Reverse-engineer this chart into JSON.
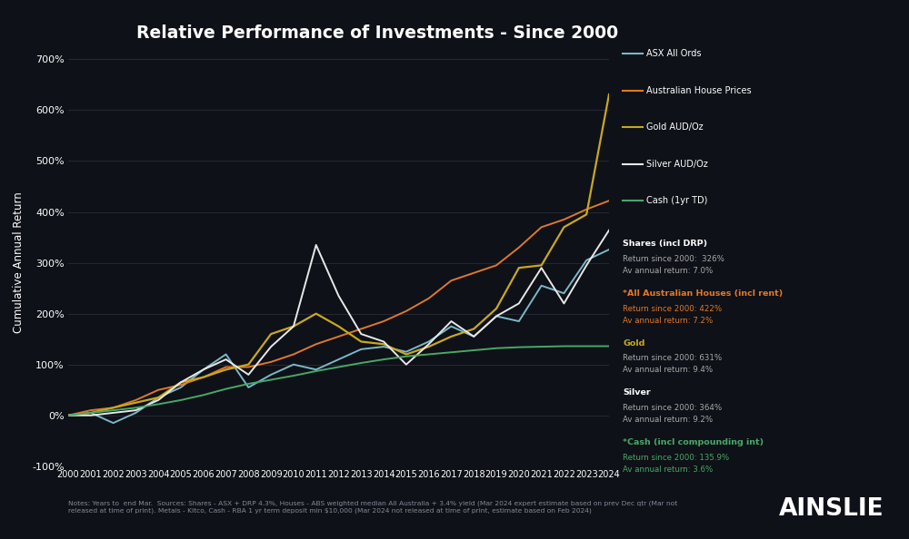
{
  "title": "Relative Performance of Investments - Since 2000",
  "ylabel": "Cumulative Annual Return",
  "background_color": "#0e1117",
  "plot_bg_color": "#0e1117",
  "grid_color": "#2a2d3a",
  "text_color": "#ffffff",
  "dim_text_color": "#888899",
  "years": [
    2000,
    2001,
    2002,
    2003,
    2004,
    2005,
    2006,
    2007,
    2008,
    2009,
    2010,
    2011,
    2012,
    2013,
    2014,
    2015,
    2016,
    2017,
    2018,
    2019,
    2020,
    2021,
    2022,
    2023,
    2024
  ],
  "asx": [
    0,
    5,
    -15,
    5,
    35,
    55,
    90,
    120,
    55,
    80,
    100,
    90,
    110,
    130,
    135,
    125,
    145,
    175,
    155,
    195,
    185,
    255,
    240,
    305,
    326
  ],
  "houses": [
    0,
    10,
    15,
    30,
    50,
    60,
    75,
    95,
    95,
    105,
    120,
    140,
    155,
    170,
    185,
    205,
    230,
    265,
    280,
    295,
    330,
    370,
    385,
    405,
    422
  ],
  "gold": [
    0,
    5,
    15,
    25,
    35,
    65,
    75,
    90,
    100,
    160,
    175,
    200,
    175,
    145,
    140,
    120,
    135,
    155,
    170,
    210,
    290,
    295,
    370,
    395,
    631
  ],
  "silver": [
    0,
    0,
    5,
    10,
    30,
    65,
    90,
    110,
    80,
    135,
    175,
    335,
    235,
    160,
    145,
    100,
    140,
    185,
    155,
    195,
    220,
    290,
    220,
    295,
    364
  ],
  "cash": [
    0,
    5,
    10,
    15,
    22,
    30,
    40,
    52,
    62,
    70,
    78,
    87,
    95,
    103,
    110,
    116,
    120,
    124,
    128,
    132,
    134,
    135,
    136,
    136,
    136
  ],
  "asx_color": "#7ab8c8",
  "houses_color": "#e07828",
  "gold_color": "#c8a820",
  "silver_color": "#e8e8e8",
  "cash_color": "#48a868",
  "ylim": [
    -100,
    700
  ],
  "yticks": [
    -100,
    0,
    100,
    200,
    300,
    400,
    500,
    600,
    700
  ],
  "legend_items": [
    {
      "label": "ASX All Ords",
      "color": "#7ab8c8"
    },
    {
      "label": "Australian House Prices",
      "color": "#e07828"
    },
    {
      "label": "Gold AUD/Oz",
      "color": "#c8a820"
    },
    {
      "label": "Silver AUD/Oz",
      "color": "#e8e8e8"
    },
    {
      "label": "Cash (1yr TD)",
      "color": "#48a868"
    }
  ],
  "annotations": [
    {
      "title": "Shares (incl DRP)",
      "title_color": "#ffffff",
      "line1": "Return since 2000:  326%",
      "line2": "Av annual return: 7.0%",
      "data_color": "#aaaaaa"
    },
    {
      "title": "*All Australian Houses (incl rent)",
      "title_color": "#e07828",
      "line1": "Return since 2000: 422%",
      "line2": "Av annual return: 7.2%",
      "data_color": "#e07828"
    },
    {
      "title": "Gold",
      "title_color": "#c8a820",
      "line1": "Return since 2000: 631%",
      "line2": "Av annual return: 9.4%",
      "data_color": "#aaaaaa"
    },
    {
      "title": "Silver",
      "title_color": "#ffffff",
      "line1": "Return since 2000: 364%",
      "line2": "Av annual return: 9.2%",
      "data_color": "#aaaaaa"
    },
    {
      "title": "*Cash (incl compounding int)",
      "title_color": "#48a868",
      "line1": "Return since 2000: 135.9%",
      "line2": "Av annual return: 3.6%",
      "data_color": "#48a868"
    }
  ],
  "notes": "Notes: Years to  end Mar.  Sources: Shares - ASX + DRP 4.3%, Houses - ABS weighted median All Australia + 3.4% yield (Mar 2024 expert estimate based on prev Dec qtr (Mar not\nreleased at time of print). Metals - Kitco, Cash - RBA 1 yr term deposit min $10,000 (Mar 2024 not released at time of print, estimate based on Feb 2024)",
  "ainslie_text": "AINSLIE"
}
